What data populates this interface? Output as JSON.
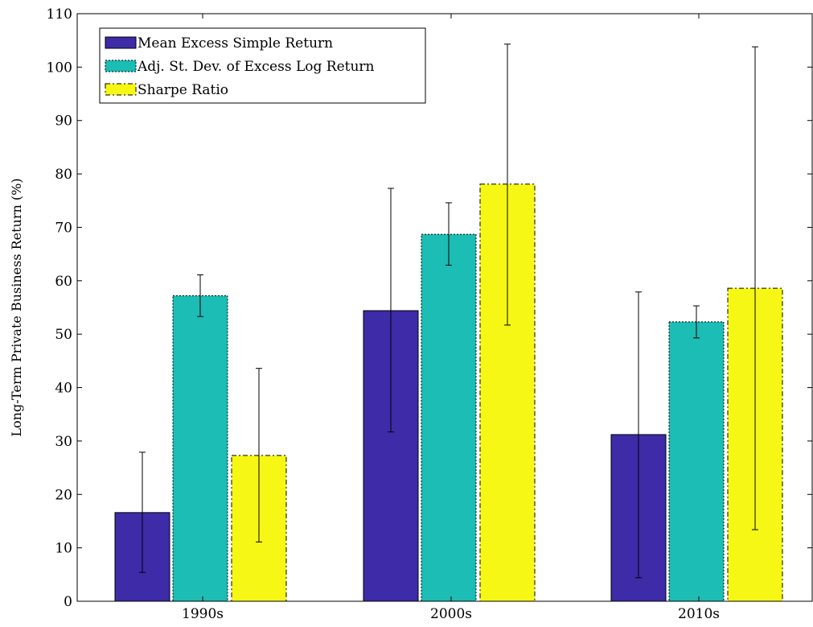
{
  "chart_data": {
    "type": "bar",
    "title": "",
    "xlabel": "",
    "ylabel": "Long-Term Private Business Return (%)",
    "categories": [
      "1990s",
      "2000s",
      "2010s"
    ],
    "ylim": [
      0,
      110
    ],
    "yticks": [
      0,
      10,
      20,
      30,
      40,
      50,
      60,
      70,
      80,
      90,
      100,
      110
    ],
    "grid": false,
    "legend_position": "top-left",
    "series": [
      {
        "name": "Mean Excess Simple Return",
        "color": "#3d2ba8",
        "border": "solid",
        "values": [
          16.6,
          54.4,
          31.2
        ],
        "error_low": [
          5.4,
          31.7,
          4.4
        ],
        "error_high": [
          27.9,
          77.3,
          57.9
        ]
      },
      {
        "name": "Adj. St. Dev. of Excess Log Return",
        "color": "#1cbdb4",
        "border": "dotted",
        "values": [
          57.2,
          68.7,
          52.3
        ],
        "error_low": [
          53.3,
          62.9,
          49.3
        ],
        "error_high": [
          61.1,
          74.6,
          55.3
        ]
      },
      {
        "name": "Sharpe Ratio",
        "color": "#f7f716",
        "border": "dashdot",
        "values": [
          27.3,
          78.1,
          58.6
        ],
        "error_low": [
          11.1,
          51.7,
          13.4
        ],
        "error_high": [
          43.6,
          104.3,
          103.8
        ]
      }
    ]
  }
}
